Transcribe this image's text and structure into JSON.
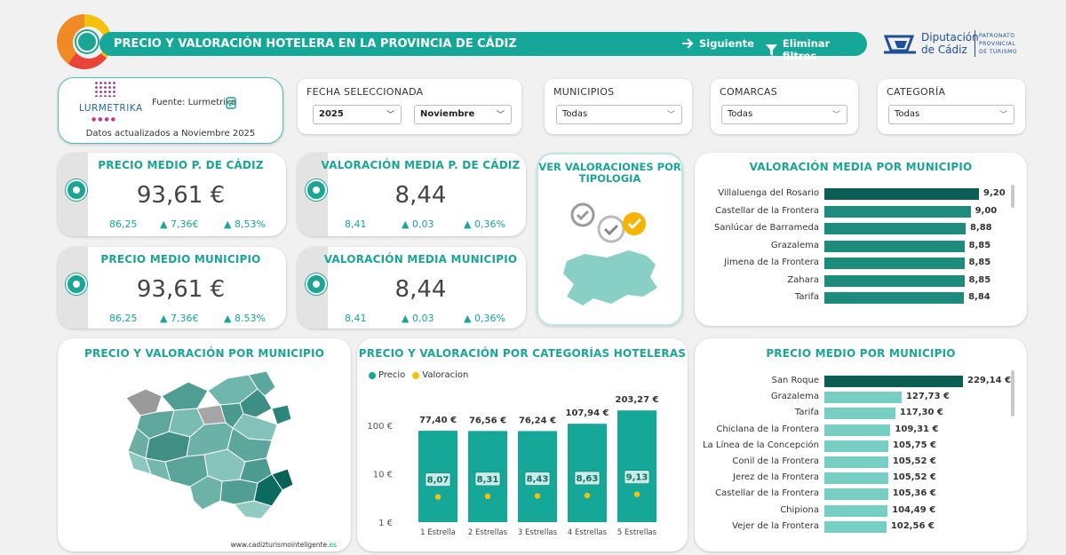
{
  "header": {
    "title": "PRECIO Y VALORACIÓN HOTELERA EN LA PROVINCIA DE CÁDIZ",
    "next_label": "Siguiente",
    "clear_label": "Eliminar filtros",
    "org_name_line1": "Diputación",
    "org_name_line2": "de Cádiz",
    "org_sub_line1": "PATRONATO",
    "org_sub_line2": "PROVINCIAL",
    "org_sub_line3": "DE TURISMO"
  },
  "source": {
    "logo_text": "LURMETRIKA",
    "label": "Fuente: Lurmetrika",
    "updated": "Datos actualizados a Noviembre 2025"
  },
  "filters": {
    "fecha": {
      "label": "FECHA SELECCIONADA",
      "year": "2025",
      "month": "Noviembre"
    },
    "municipios": {
      "label": "MUNICIPIOS",
      "value": "Todas"
    },
    "comarcas": {
      "label": "COMARCAS",
      "value": "Todas"
    },
    "categoria": {
      "label": "CATEGORÍA",
      "value": "Todas"
    }
  },
  "kpis": {
    "precio_prov": {
      "title": "PRECIO MEDIO P. DE CÁDIZ",
      "value": "93,61 €",
      "prev": "86,25",
      "diff": "▲ 7,36€",
      "pct": "▲ 8,53%"
    },
    "val_prov": {
      "title": "VALORACIÓN MEDIA P. DE CÁDIZ",
      "value": "8,44",
      "prev": "8,41",
      "diff": "▲ 0,03",
      "pct": "▲ 0,36%"
    },
    "precio_mun": {
      "title": "PRECIO MEDIO MUNICIPIO",
      "value": "93,61 €",
      "prev": "86,25",
      "diff": "▲ 7,36€",
      "pct": "▲ 8.53%"
    },
    "val_mun": {
      "title": "VALORACIÓN MEDIA MUNICIPIO",
      "value": "8,44",
      "prev": "8,41",
      "diff": "▲ 0,03",
      "pct": "▲ 0,36%"
    }
  },
  "tipologia": {
    "title_line1": "VER VALORACIONES POR",
    "title_line2": "TIPOLOGIA"
  },
  "map_panel": {
    "title": "PRECIO Y VALORACIÓN POR MUNICIPIO",
    "url_main": "www.cadizturismointeligente.",
    "url_tld": "es"
  },
  "colors": {
    "teal": "#15a898",
    "dark_teal": "#0b5e54",
    "mid_teal": "#1e8c7d",
    "light_teal": "#77cfc4",
    "dot": "#f4c20d"
  },
  "chart_data": [
    {
      "type": "bar",
      "title": "VALORACIÓN MEDIA POR MUNICIPIO",
      "categories": [
        "Villaluenga del Rosario",
        "Castellar de la Frontera",
        "Sanlúcar de Barrameda",
        "Grazalema",
        "Jimena de la Frontera",
        "Zahara",
        "Tarifa"
      ],
      "values": [
        9.2,
        9.0,
        8.88,
        8.85,
        8.85,
        8.85,
        8.84
      ],
      "labels": [
        "9,20",
        "9,00",
        "8,88",
        "8,85",
        "8,85",
        "8,85",
        "8,84"
      ]
    },
    {
      "type": "bar",
      "title": "PRECIO Y VALORACIÓN POR CATEGORÍAS HOTELERAS",
      "legend": [
        "Precio",
        "Valoracion"
      ],
      "categories": [
        "1 Estrella",
        "2 Estrellas",
        "3 Estrellas",
        "4 Estrellas",
        "5 Estrellas"
      ],
      "series": [
        {
          "name": "Precio",
          "values": [
            77.4,
            76.56,
            76.24,
            107.94,
            203.27
          ],
          "labels": [
            "77,40 €",
            "76,56 €",
            "76,24 €",
            "107,94 €",
            "203,27 €"
          ]
        },
        {
          "name": "Valoracion",
          "values": [
            8.07,
            8.31,
            8.43,
            8.63,
            9.13
          ],
          "labels": [
            "8,07",
            "8,31",
            "8,43",
            "8,63",
            "9,13"
          ]
        }
      ],
      "yscale": "log",
      "yticks": [
        "1 €",
        "10 €",
        "100 €"
      ],
      "ytick_values": [
        1,
        10,
        100
      ]
    },
    {
      "type": "bar",
      "title": "PRECIO MEDIO POR MUNICIPIO",
      "categories": [
        "San Roque",
        "Grazalema",
        "Tarifa",
        "Chiclana de la Frontera",
        "La Línea de la Concepción",
        "Conil de la Frontera",
        "Jerez de la Frontera",
        "Castellar de la Frontera",
        "Chipiona",
        "Vejer de la Frontera"
      ],
      "values": [
        229.14,
        127.73,
        117.3,
        109.31,
        105.75,
        105.52,
        105.52,
        105.36,
        104.49,
        102.56
      ],
      "labels": [
        "229,14 €",
        "127,73 €",
        "117,30 €",
        "109,31 €",
        "105,75 €",
        "105,52 €",
        "105,52 €",
        "105,36 €",
        "104,49 €",
        "102,56 €"
      ]
    }
  ]
}
